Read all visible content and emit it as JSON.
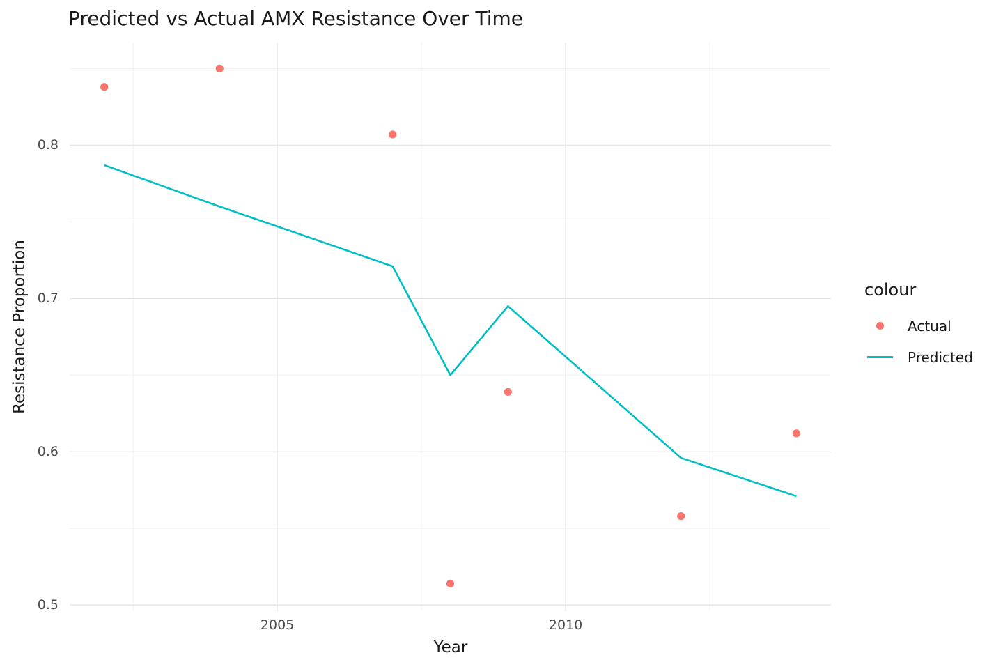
{
  "chart_data": {
    "type": "line",
    "title": "Predicted vs Actual AMX Resistance Over Time",
    "xlabel": "Year",
    "ylabel": "Resistance Proportion",
    "xlim": [
      2001.4,
      2014.6
    ],
    "ylim": [
      0.496,
      0.867
    ],
    "grid": true,
    "legend_position": "right",
    "x": [
      2002,
      2004,
      2007,
      2008,
      2009,
      2012,
      2014
    ],
    "series": [
      {
        "name": "Actual",
        "type": "scatter",
        "values": [
          0.838,
          0.85,
          0.807,
          0.514,
          0.639,
          0.558,
          0.612
        ]
      },
      {
        "name": "Predicted",
        "type": "line",
        "values": [
          0.787,
          0.76,
          0.721,
          0.65,
          0.695,
          0.596,
          0.571
        ]
      }
    ],
    "x_ticks": [
      {
        "value": 2005,
        "label": "2005"
      },
      {
        "value": 2010,
        "label": "2010"
      }
    ],
    "y_ticks": [
      {
        "value": 0.5,
        "label": "0.5"
      },
      {
        "value": 0.6,
        "label": "0.6"
      },
      {
        "value": 0.7,
        "label": "0.7"
      },
      {
        "value": 0.8,
        "label": "0.8"
      }
    ],
    "x_minor_gridlines": [
      2002.5,
      2007.5,
      2012.5
    ],
    "y_minor_gridlines": [
      0.55,
      0.65,
      0.75,
      0.85
    ]
  },
  "legend": {
    "title": "colour",
    "items": [
      {
        "label": "Actual",
        "glyph": "point"
      },
      {
        "label": "Predicted",
        "glyph": "line"
      }
    ]
  },
  "colors": {
    "actual": "#F8766D",
    "predicted": "#00BFC4",
    "grid_major": "#E6E6E6",
    "grid_minor": "#F1F1F1",
    "tick_text": "#4D4D4D",
    "title_text": "#1A1A1A",
    "background": "#FFFFFF"
  }
}
